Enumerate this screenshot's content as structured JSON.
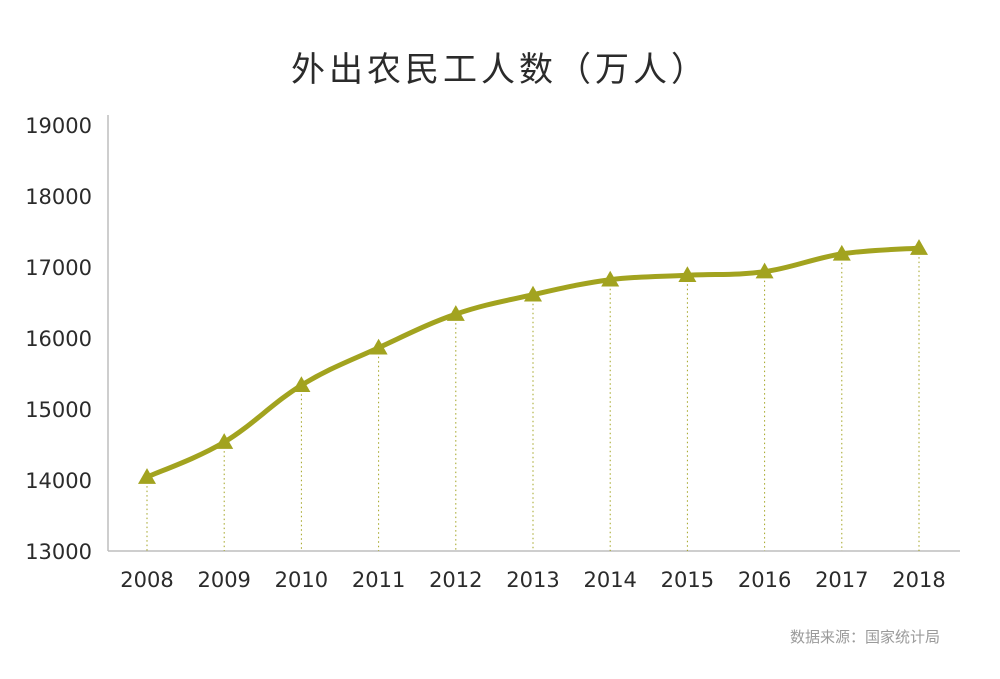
{
  "chart_data": {
    "type": "line",
    "title": "外出农民工人数（万人）",
    "xlabel": "",
    "ylabel": "",
    "x": [
      "2008",
      "2009",
      "2010",
      "2011",
      "2012",
      "2013",
      "2014",
      "2015",
      "2016",
      "2017",
      "2018"
    ],
    "series": [
      {
        "values": [
          14041,
          14533,
          15335,
          15863,
          16336,
          16610,
          16821,
          16884,
          16934,
          17185,
          17266
        ]
      }
    ],
    "yticks": [
      "13000",
      "14000",
      "15000",
      "16000",
      "17000",
      "18000",
      "19000"
    ],
    "ylim": [
      13000,
      19000
    ],
    "grid": "vertical dotted drop lines",
    "legend": "none",
    "marker": "triangle",
    "colors": {
      "line": "#a2a31f",
      "axis": "#bdbdbd",
      "text": "#2b2b2b"
    }
  },
  "source": "数据来源：国家统计局"
}
